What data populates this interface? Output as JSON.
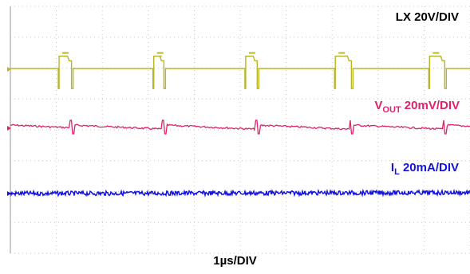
{
  "chart_data": {
    "type": "line",
    "title": "",
    "xlabel": "1µs/DIV",
    "ylabel": "",
    "grid": true,
    "x_range_us": [
      0,
      10
    ],
    "channels": [
      {
        "id": "lx",
        "name_main": "LX",
        "name_sub": "",
        "scale": "20V/DIV",
        "color": "#b8b52a",
        "waveform": "switch-node square wave",
        "period_us": 2.03,
        "high_div": 0.4,
        "low_div": -0.65,
        "ringing_div": 0.15,
        "edges_us": [
          {
            "rise": 1.06,
            "fall": 1.33
          },
          {
            "rise": 3.12,
            "fall": 3.34
          },
          {
            "rise": 5.12,
            "fall": 5.37
          },
          {
            "rise": 7.07,
            "fall": 7.42
          },
          {
            "rise": 9.12,
            "fall": 9.45
          }
        ]
      },
      {
        "id": "vout",
        "name_main": "V",
        "name_sub": "OUT",
        "scale": "20mV/DIV",
        "color": "#e0216b",
        "waveform": "output ripple",
        "ripple_mv": 10,
        "spikes_us": [
          1.33,
          3.34,
          5.37,
          7.42,
          9.45
        ]
      },
      {
        "id": "il",
        "name_main": "I",
        "name_sub": "L",
        "scale": "20mA/DIV",
        "color": "#1414e0",
        "waveform": "inductor current, flat with noise",
        "noise_ma": 2
      }
    ]
  }
}
